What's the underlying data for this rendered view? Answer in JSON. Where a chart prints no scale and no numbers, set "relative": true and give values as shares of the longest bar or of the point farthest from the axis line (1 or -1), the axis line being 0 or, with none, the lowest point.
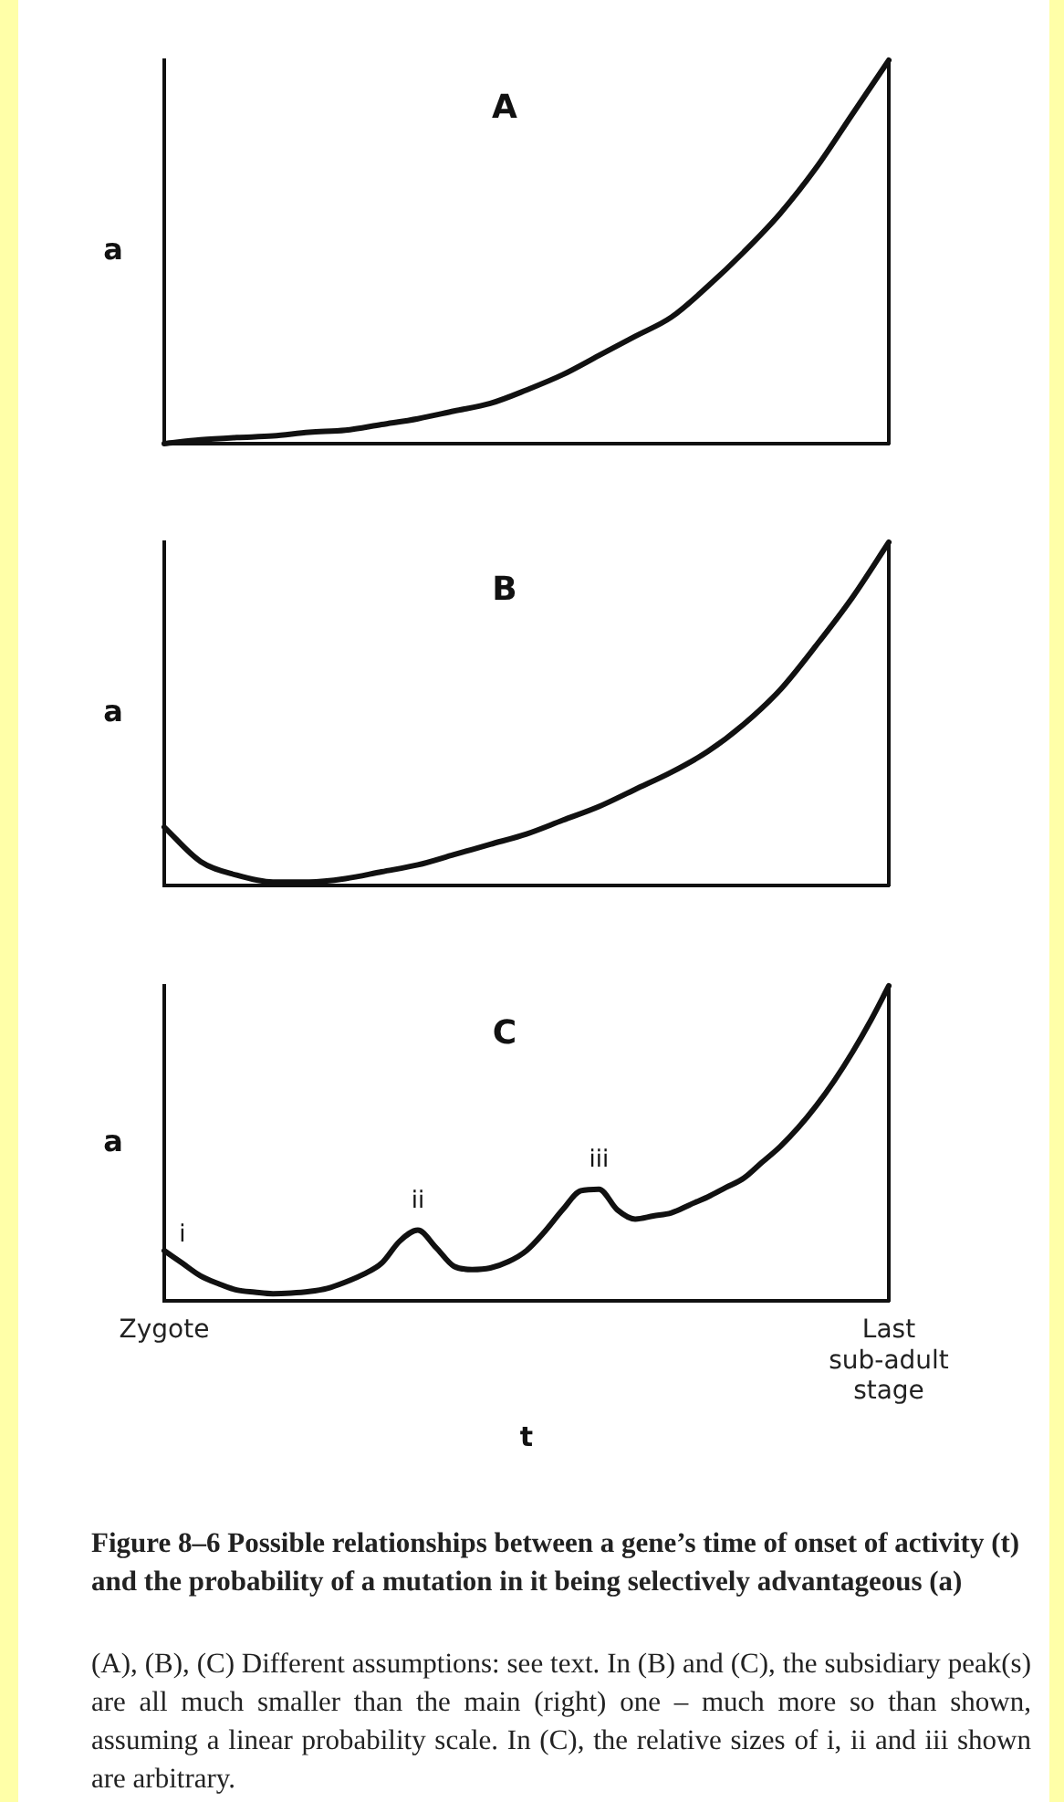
{
  "chart_data": [
    {
      "type": "line",
      "title": "A",
      "ylabel": "a",
      "relative": true,
      "tick_labels": false,
      "categories": [
        null,
        null,
        null,
        null,
        null,
        null,
        null,
        null,
        null,
        null,
        null,
        null,
        null,
        null,
        null,
        null,
        null,
        null,
        null,
        null,
        null
      ],
      "series": [
        {
          "color": "#111111",
          "values": [
            0,
            0.01,
            0.016,
            0.02,
            0.03,
            0.035,
            0.05,
            0.065,
            0.085,
            0.105,
            0.14,
            0.18,
            0.23,
            0.28,
            0.33,
            0.41,
            0.5,
            0.6,
            0.72,
            0.86,
            1
          ]
        }
      ]
    },
    {
      "type": "line",
      "title": "B",
      "ylabel": "a",
      "relative": true,
      "tick_labels": false,
      "categories": [
        null,
        null,
        null,
        null,
        null,
        null,
        null,
        null,
        null,
        null,
        null,
        null,
        null,
        null,
        null,
        null,
        null,
        null,
        null,
        null,
        null
      ],
      "series": [
        {
          "color": "#111111",
          "values": [
            0.17,
            0.07,
            0.03,
            0.01,
            0.01,
            0.02,
            0.04,
            0.06,
            0.09,
            0.12,
            0.15,
            0.19,
            0.23,
            0.28,
            0.33,
            0.39,
            0.47,
            0.57,
            0.7,
            0.84,
            1
          ]
        }
      ]
    },
    {
      "type": "line",
      "title": "C",
      "ylabel": "a",
      "xlabel": "t",
      "relative": true,
      "tick_labels": "x",
      "categories": [
        "Zygote",
        null,
        null,
        null,
        null,
        null,
        null,
        null,
        null,
        null,
        null,
        null,
        null,
        null,
        null,
        null,
        null,
        null,
        null,
        null,
        null,
        null,
        null,
        null,
        null,
        null,
        null,
        null,
        null,
        null,
        null,
        null,
        null,
        null,
        null,
        null,
        null,
        null,
        null,
        null,
        "Last sub-adult stage"
      ],
      "series": [
        {
          "color": "#111111",
          "values": [
            0.16,
            0.12,
            0.08,
            0.055,
            0.035,
            0.028,
            0.023,
            0.025,
            0.03,
            0.04,
            0.06,
            0.085,
            0.12,
            0.19,
            0.225,
            0.17,
            0.11,
            0.1,
            0.105,
            0.125,
            0.16,
            0.22,
            0.29,
            0.35,
            0.355,
            0.29,
            0.26,
            0.27,
            0.28,
            0.305,
            0.33,
            0.36,
            0.39,
            0.44,
            0.49,
            0.55,
            0.62,
            0.7,
            0.79,
            0.89,
            1
          ]
        }
      ],
      "annotations": [
        {
          "text": "i",
          "y": 0.12
        },
        {
          "text": "ii",
          "y": 0.225
        },
        {
          "text": "iii",
          "y": 0.355
        },
        "Figure 8–6 Possible relationships between a gene’s time of onset of activity (t) and the probability of a mutation in it being selectively advantageous (a)",
        "(A), (B), (C) Different assumptions: see text. In (B) and (C), the subsidiary peak(s) are all much smaller than the main (right) one – much more so than shown, assuming a linear probability scale. In (C), the relative sizes of i, ii and iii shown are arbitrary."
      ]
    }
  ]
}
